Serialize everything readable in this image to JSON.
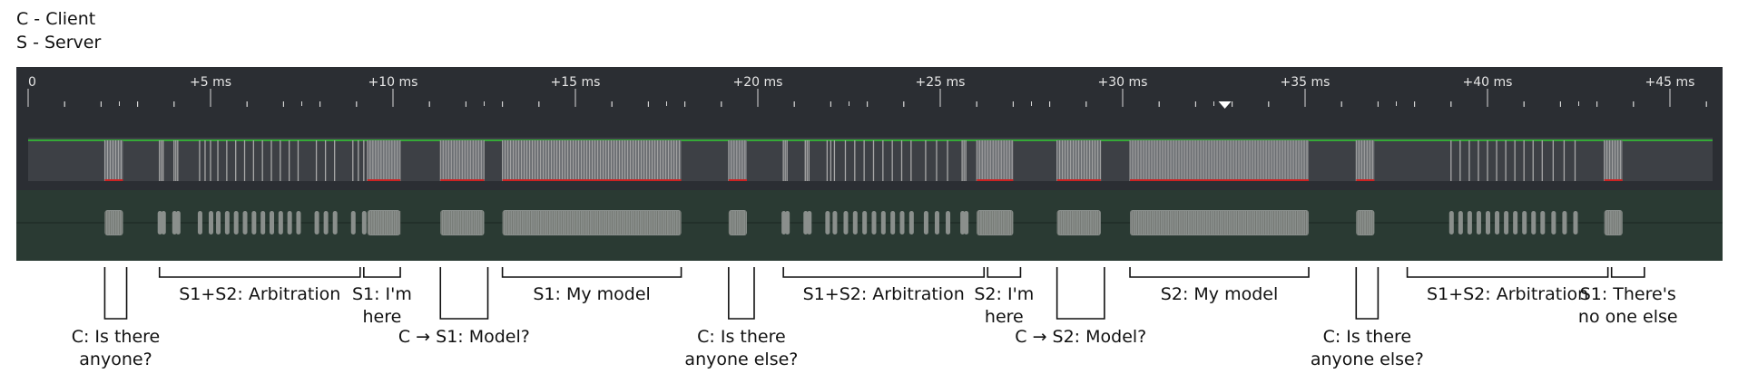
{
  "legend": {
    "client": "C - Client",
    "server": "S - Server"
  },
  "timeline": {
    "ticks": [
      "0",
      "+5 ms",
      "+10 ms",
      "+15 ms",
      "+20 ms",
      "+25 ms",
      "+30 ms",
      "+35 ms",
      "+40 ms",
      "+45 ms"
    ],
    "cursor_ms": 32.8,
    "colors": {
      "panel": "#2b2e33",
      "digital_lane": "#3d4045",
      "digital_high_line": "#33cc33",
      "digital_edge": "#a8a8a8",
      "digital_low_mark": "#cc2222",
      "analog_lane": "#2a3a33",
      "analog_burst": "#8a8f8c"
    },
    "bursts": [
      {
        "start": 2.1,
        "end": 2.6,
        "kind": "dense"
      },
      {
        "start": 3.6,
        "end": 3.7,
        "kind": "sparse"
      },
      {
        "start": 4.0,
        "end": 4.1,
        "kind": "sparse"
      },
      {
        "start": 4.7,
        "end": 5.0,
        "kind": "sparse"
      },
      {
        "start": 5.2,
        "end": 7.4,
        "kind": "sparse"
      },
      {
        "start": 7.9,
        "end": 8.4,
        "kind": "sparse"
      },
      {
        "start": 8.9,
        "end": 9.2,
        "kind": "sparse"
      },
      {
        "start": 9.3,
        "end": 10.2,
        "kind": "dense"
      },
      {
        "start": 11.3,
        "end": 12.5,
        "kind": "dense"
      },
      {
        "start": 13.0,
        "end": 17.9,
        "kind": "dense"
      },
      {
        "start": 19.2,
        "end": 19.7,
        "kind": "dense"
      },
      {
        "start": 20.7,
        "end": 20.8,
        "kind": "sparse"
      },
      {
        "start": 21.3,
        "end": 21.4,
        "kind": "sparse"
      },
      {
        "start": 21.9,
        "end": 22.1,
        "kind": "sparse"
      },
      {
        "start": 22.4,
        "end": 24.2,
        "kind": "sparse"
      },
      {
        "start": 24.6,
        "end": 25.2,
        "kind": "sparse"
      },
      {
        "start": 25.6,
        "end": 25.7,
        "kind": "sparse"
      },
      {
        "start": 26.0,
        "end": 27.0,
        "kind": "dense"
      },
      {
        "start": 28.2,
        "end": 29.4,
        "kind": "dense"
      },
      {
        "start": 30.2,
        "end": 35.1,
        "kind": "dense"
      },
      {
        "start": 36.4,
        "end": 36.9,
        "kind": "dense"
      },
      {
        "start": 39.0,
        "end": 41.5,
        "kind": "sparse"
      },
      {
        "start": 41.8,
        "end": 42.4,
        "kind": "sparse"
      },
      {
        "start": 43.2,
        "end": 43.7,
        "kind": "dense"
      }
    ]
  },
  "annotations": {
    "below": [
      {
        "start": 2.1,
        "end": 2.7,
        "lines": [
          "C: Is there",
          "anyone?"
        ]
      },
      {
        "start": 11.3,
        "end": 12.6,
        "lines": [
          "C → S1: Model?"
        ]
      },
      {
        "start": 19.2,
        "end": 19.9,
        "lines": [
          "C: Is there",
          "anyone else?"
        ]
      },
      {
        "start": 28.2,
        "end": 29.5,
        "lines": [
          "C → S2: Model?"
        ]
      },
      {
        "start": 36.4,
        "end": 37.0,
        "lines": [
          "C: Is there",
          "anyone else?"
        ]
      }
    ],
    "above": [
      {
        "start": 3.6,
        "end": 9.1,
        "lines": [
          "S1+S2: Arbitration"
        ]
      },
      {
        "start": 9.2,
        "end": 10.2,
        "lines": [
          "S1: I'm",
          "here"
        ]
      },
      {
        "start": 13.0,
        "end": 17.9,
        "lines": [
          "S1: My model"
        ]
      },
      {
        "start": 20.7,
        "end": 26.2,
        "lines": [
          "S1+S2: Arbitration"
        ]
      },
      {
        "start": 26.3,
        "end": 27.2,
        "lines": [
          "S2: I'm",
          "here"
        ]
      },
      {
        "start": 30.2,
        "end": 35.1,
        "lines": [
          "S2: My model"
        ]
      },
      {
        "start": 37.8,
        "end": 43.3,
        "lines": [
          "S1+S2: Arbitration"
        ]
      },
      {
        "start": 43.4,
        "end": 44.3,
        "lines": [
          "S1: There's",
          "no one else"
        ]
      }
    ]
  }
}
